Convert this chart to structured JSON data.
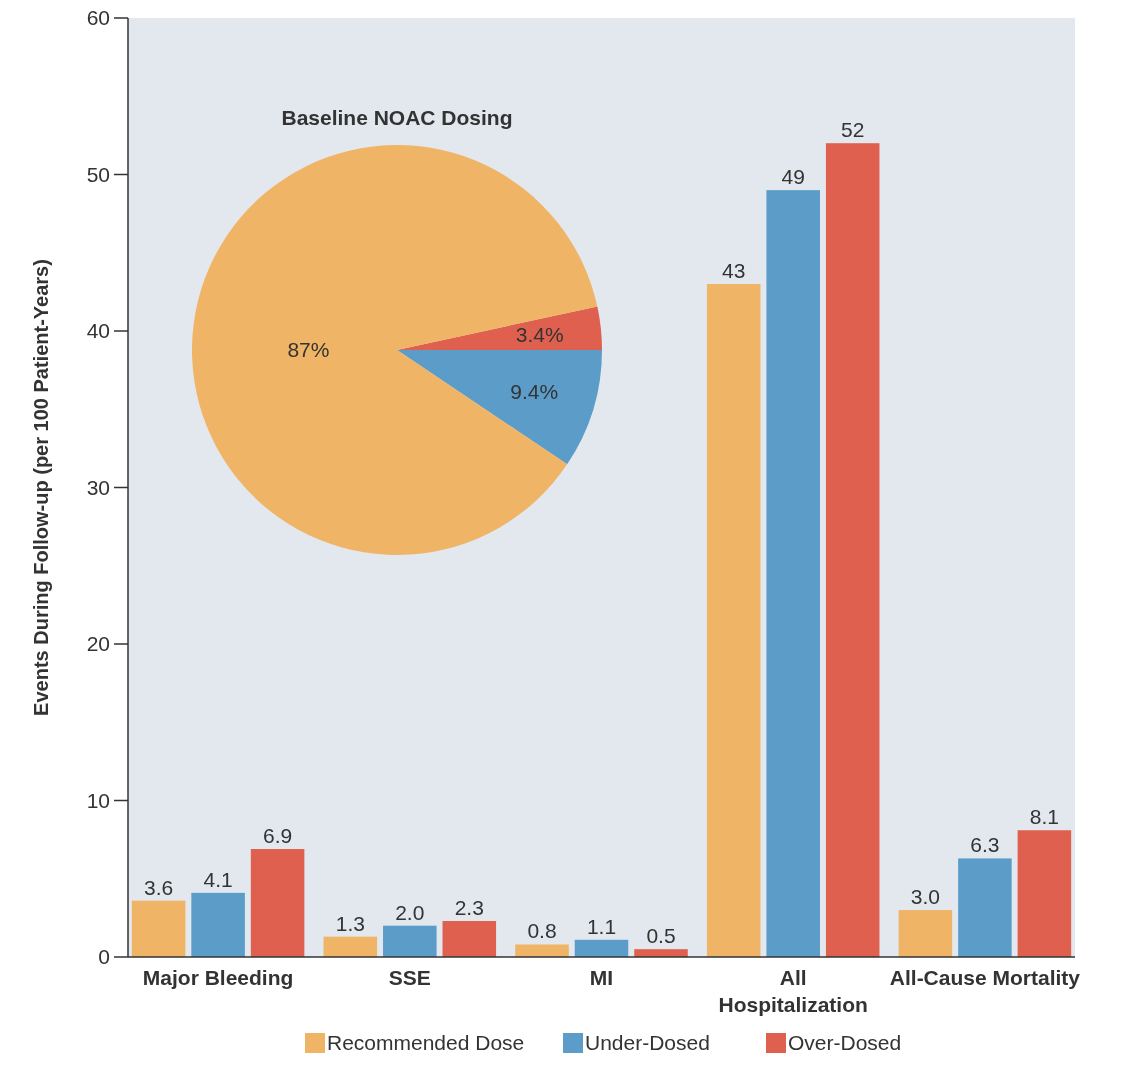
{
  "chart_data": [
    {
      "type": "bar",
      "ylabel": "Events During Follow-up (per 100 Patient-Years)",
      "categories": [
        "Major Bleeding",
        "SSE",
        "MI",
        "All Hospitalization",
        "All-Cause Mortality"
      ],
      "series": [
        {
          "name": "Recommended Dose",
          "color": "#f0b466",
          "values": [
            3.6,
            1.3,
            0.8,
            43,
            3.0
          ],
          "value_labels": [
            "3.6",
            "1.3",
            "0.8",
            "43",
            "3.0"
          ]
        },
        {
          "name": "Under-Dosed",
          "color": "#5b9cc8",
          "values": [
            4.1,
            2.0,
            1.1,
            49,
            6.3
          ],
          "value_labels": [
            "4.1",
            "2.0",
            "1.1",
            "49",
            "6.3"
          ]
        },
        {
          "name": "Over-Dosed",
          "color": "#e06050",
          "values": [
            6.9,
            2.3,
            0.5,
            52,
            8.1
          ],
          "value_labels": [
            "6.9",
            "2.3",
            "0.5",
            "52",
            "8.1"
          ]
        }
      ],
      "ylim": [
        0,
        60
      ],
      "yticks": [
        0,
        10,
        20,
        30,
        40,
        50,
        60
      ],
      "grid": false,
      "legend": "bottom"
    },
    {
      "type": "pie",
      "title": "Baseline NOAC Dosing",
      "categories": [
        null,
        null,
        null
      ],
      "values": [
        3.4,
        9.4,
        87
      ],
      "colors": [
        "#e06050",
        "#5b9cc8",
        "#f0b466"
      ],
      "value_labels": [
        "3.4%",
        "9.4%",
        "87%"
      ]
    }
  ]
}
